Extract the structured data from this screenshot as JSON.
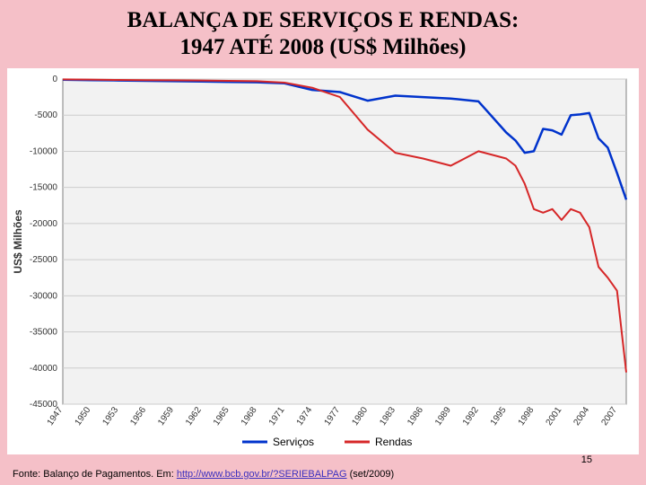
{
  "title_line1": "BALANÇA DE SERVIÇOS E RENDAS:",
  "title_line2": "1947 ATÉ 2008 (US$ Milhões)",
  "title_fontsize": 25,
  "page_number": "15",
  "footer_prefix": "Fonte: Balanço de Pagamentos. Em: ",
  "footer_link_text": "http://www.bcb.gov.br/?SERIEBALPAG",
  "footer_suffix": " (set/2009)",
  "chart": {
    "type": "line",
    "background_color": "#ffffff",
    "plot_background_color": "#f2f2f2",
    "grid_color": "#cccccc",
    "axis_color": "#808080",
    "ylabel": "US$ Milhões",
    "ylim": [
      -45000,
      0
    ],
    "ytick_step": 5000,
    "yticks": [
      0,
      -5000,
      -10000,
      -15000,
      -20000,
      -25000,
      -30000,
      -35000,
      -40000,
      -45000
    ],
    "xlim": [
      1947,
      2008
    ],
    "xticks": [
      1947,
      1950,
      1953,
      1956,
      1959,
      1962,
      1965,
      1968,
      1971,
      1974,
      1977,
      1980,
      1983,
      1986,
      1989,
      1992,
      1995,
      1998,
      2001,
      2004,
      2007
    ],
    "legend": {
      "position": "bottom-center",
      "items": [
        {
          "label": "Serviços",
          "color": "#0033cc"
        },
        {
          "label": "Rendas",
          "color": "#d62728"
        }
      ]
    },
    "series": [
      {
        "name": "Serviços",
        "color": "#0033cc",
        "line_width": 2.5,
        "years": [
          1947,
          1950,
          1953,
          1956,
          1959,
          1962,
          1965,
          1968,
          1971,
          1974,
          1977,
          1980,
          1983,
          1986,
          1989,
          1992,
          1995,
          1996,
          1997,
          1998,
          1999,
          2000,
          2001,
          2002,
          2003,
          2004,
          2005,
          2006,
          2007,
          2008
        ],
        "values": [
          -100,
          -150,
          -200,
          -250,
          -300,
          -350,
          -400,
          -450,
          -600,
          -1500,
          -1800,
          -3000,
          -2300,
          -2500,
          -2700,
          -3100,
          -7400,
          -8500,
          -10200,
          -10000,
          -6900,
          -7100,
          -7700,
          -5000,
          -4900,
          -4700,
          -8200,
          -9500,
          -13000,
          -16700
        ]
      },
      {
        "name": "Rendas",
        "color": "#d62728",
        "line_width": 2,
        "years": [
          1947,
          1950,
          1953,
          1956,
          1959,
          1962,
          1965,
          1968,
          1971,
          1974,
          1977,
          1980,
          1983,
          1986,
          1989,
          1992,
          1995,
          1996,
          1997,
          1998,
          1999,
          2000,
          2001,
          2002,
          2003,
          2004,
          2005,
          2006,
          2007,
          2008
        ],
        "values": [
          -50,
          -80,
          -120,
          -150,
          -180,
          -200,
          -250,
          -300,
          -500,
          -1200,
          -2500,
          -7000,
          -10200,
          -11000,
          -12000,
          -10000,
          -11000,
          -12000,
          -14500,
          -18000,
          -18500,
          -18000,
          -19500,
          -18000,
          -18500,
          -20500,
          -26000,
          -27500,
          -29300,
          -40600
        ]
      }
    ]
  }
}
